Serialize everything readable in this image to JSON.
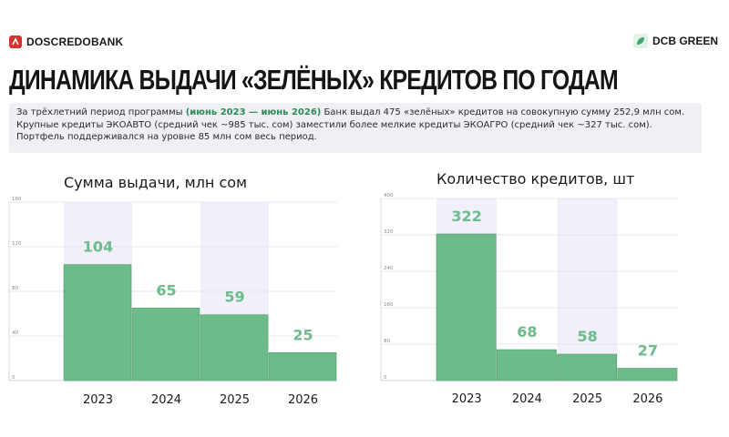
{
  "header": {
    "left_brand": "DOSCREDOBANK",
    "right_brand": "DCB GREEN",
    "title": "ДИНАМИКА ВЫДАЧИ «ЗЕЛЁНЫХ» КРЕДИТОВ ПО ГОДАМ"
  },
  "summary": {
    "part1": "За трёхлетний период программы ",
    "highlight": "(июнь 2023 — июнь 2026)",
    "part2": " Банк выдал 475 «зелёных» кредитов на совокупную сумму 252,9 млн сом. Крупные кредиты ЭКОАВТО (средний чек ~985 тыс. сом) заместили более мелкие кредиты ЭКОАГРО (средний чек ~327 тыс. сом). Портфель поддерживался на уровне 85 млн сом весь период."
  },
  "colors": {
    "bar": "#6dbb8b",
    "bar_stroke": "#4f9e6c",
    "label": "#6dbb8b",
    "panel": "#f1f0fa",
    "brand_red": "#d93030"
  },
  "chart_data": [
    {
      "type": "bar",
      "title": "Сумма выдачи, млн сом",
      "categories": [
        "2023",
        "2024",
        "2025",
        "2026"
      ],
      "values": [
        104,
        65,
        59,
        25
      ],
      "ylim": [
        0,
        160
      ],
      "yticks": [
        "0",
        "40",
        "80",
        "120",
        "160"
      ],
      "grid": true
    },
    {
      "type": "bar",
      "title": "Количество кредитов, шт",
      "categories": [
        "2023",
        "2024",
        "2025",
        "2026"
      ],
      "values": [
        322,
        68,
        58,
        27
      ],
      "ylim": [
        0,
        400
      ],
      "yticks": [
        "0",
        "80",
        "160",
        "240",
        "320",
        "400"
      ],
      "grid": true
    }
  ]
}
